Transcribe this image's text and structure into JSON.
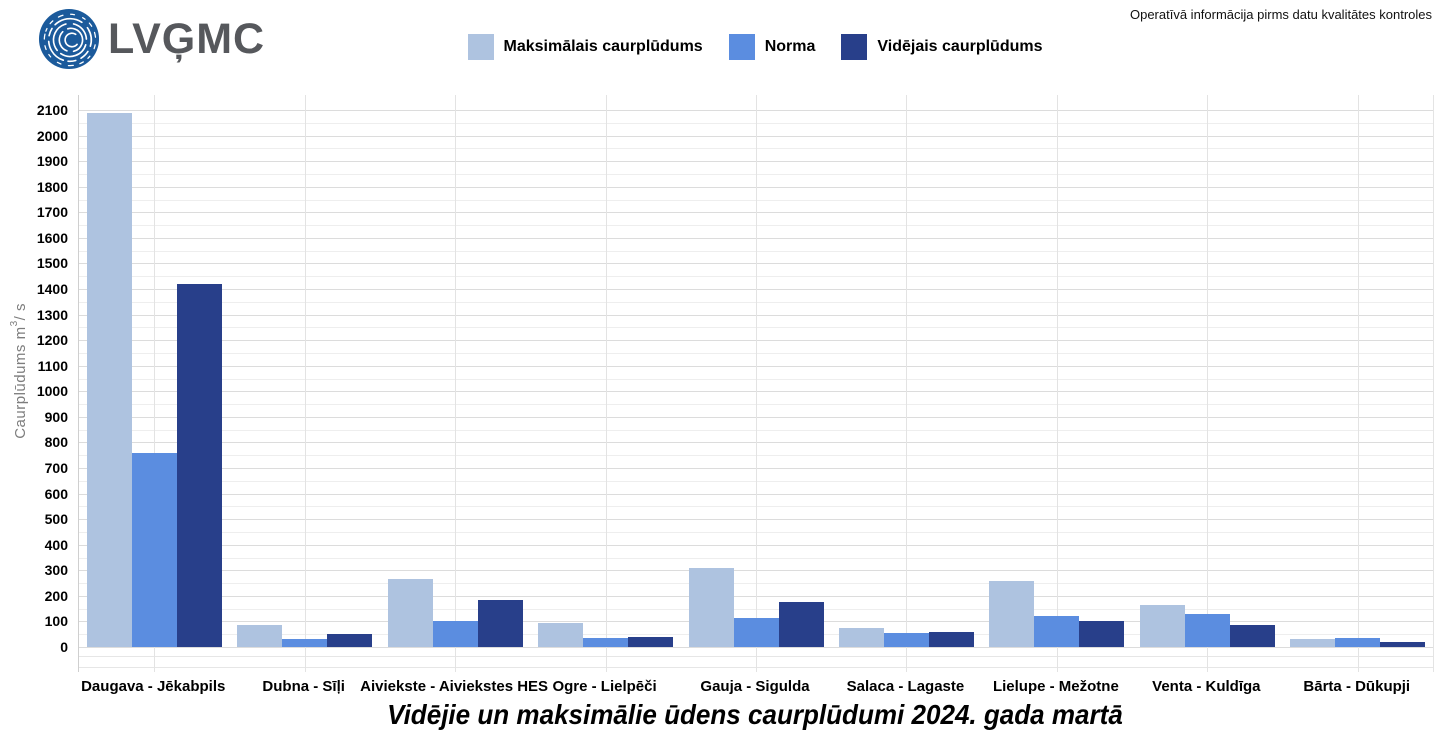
{
  "header": {
    "logo_text": "LVĢMC",
    "note": "Operatīvā informācija pirms datu kvalitātes kontroles"
  },
  "yaxis_title": {
    "pre": "Caurplūdums  m",
    "sup": "3",
    "post": "/ s"
  },
  "chart_data": {
    "type": "bar",
    "title": "Vidējie un maksimālie ūdens caurplūdumi 2024. gada martā",
    "ylabel": "Caurplūdums m³/s",
    "xlabel": "",
    "ylim": [
      0,
      2100
    ],
    "ytick_step": 100,
    "minor_tick_step": 50,
    "grid": true,
    "legend_position": "top",
    "categories": [
      "Daugava - Jēkabpils",
      "Dubna - Sīļi",
      "Aiviekste - Aiviekstes HES",
      "Ogre - Lielpēči",
      "Gauja - Sigulda",
      "Salaca - Lagaste",
      "Lielupe - Mežotne",
      "Venta - Kuldīga",
      "Bārta - Dūkupji"
    ],
    "series": [
      {
        "name": "Maksimālais caurplūdums",
        "color": "#aec3e0",
        "values": [
          2090,
          85,
          265,
          95,
          310,
          75,
          260,
          165,
          30
        ]
      },
      {
        "name": "Norma",
        "color": "#5b8de0",
        "values": [
          760,
          30,
          100,
          35,
          115,
          55,
          120,
          130,
          35
        ]
      },
      {
        "name": "Vidējais caurplūdums",
        "color": "#283f8a",
        "values": [
          1420,
          50,
          185,
          40,
          175,
          60,
          100,
          85,
          20
        ]
      }
    ]
  },
  "logo_color": "#1b5a9b"
}
